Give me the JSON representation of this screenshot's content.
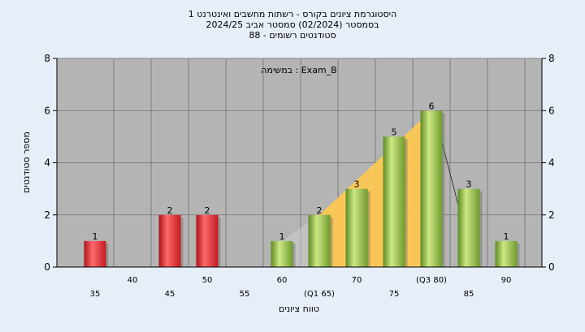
{
  "header": {
    "title_line1": "היסטוגרמת ציונים בקורס - רשתות מחשבים ואינטרנט 1",
    "title_line2": "בסמסטר  (02/2024)  סמסטר אביב 2024/25",
    "title_line3": "סטודנטים רשומים - 88"
  },
  "chart_data": {
    "type": "bar",
    "annotation": "במשימה : Exam_B",
    "xlabel": "טווח ציונים",
    "ylabel": "מספר סטודנטים",
    "ylim": [
      0,
      8
    ],
    "yticks": [
      0,
      2,
      4,
      6,
      8
    ],
    "x_tick_labels": [
      {
        "x": 35,
        "label": "35"
      },
      {
        "x": 40,
        "label": "40"
      },
      {
        "x": 45,
        "label": "45"
      },
      {
        "x": 50,
        "label": "50"
      },
      {
        "x": 55,
        "label": "55"
      },
      {
        "x": 60,
        "label": "60"
      },
      {
        "x": 65,
        "label": "(Q1 65)"
      },
      {
        "x": 70,
        "label": "70"
      },
      {
        "x": 75,
        "label": "75"
      },
      {
        "x": 80,
        "label": "(Q3 80)"
      },
      {
        "x": 85,
        "label": "85"
      },
      {
        "x": 90,
        "label": "90"
      }
    ],
    "bars": [
      {
        "x": 35,
        "value": 1,
        "label": "1",
        "color": "red"
      },
      {
        "x": 45,
        "value": 2,
        "label": "2",
        "color": "red"
      },
      {
        "x": 50,
        "value": 2,
        "label": "2",
        "color": "red"
      },
      {
        "x": 60,
        "value": 1,
        "label": "1",
        "color": "green"
      },
      {
        "x": 65,
        "value": 2,
        "label": "2",
        "color": "green"
      },
      {
        "x": 70,
        "value": 3,
        "label": "3",
        "color": "green"
      },
      {
        "x": 75,
        "value": 5,
        "label": "5",
        "color": "green"
      },
      {
        "x": 80,
        "value": 6,
        "label": "6",
        "color": "green"
      },
      {
        "x": 85,
        "value": 3,
        "label": "3",
        "color": "green"
      },
      {
        "x": 90,
        "value": 1,
        "label": "1",
        "color": "green"
      }
    ],
    "iqr_area": {
      "points": [
        [
          65,
          2
        ],
        [
          80,
          6
        ],
        [
          80,
          0
        ],
        [
          65,
          0
        ]
      ]
    },
    "grid": true,
    "colors": {
      "background": "#e6eef8",
      "plot_bg": "#b4b4b4",
      "grid": "#707070",
      "red_bar": "#e8282c",
      "green_bar": "#8cbc3c",
      "iqr_fill": "#ffc850",
      "iqr_outline": "#d0d0d0"
    }
  }
}
